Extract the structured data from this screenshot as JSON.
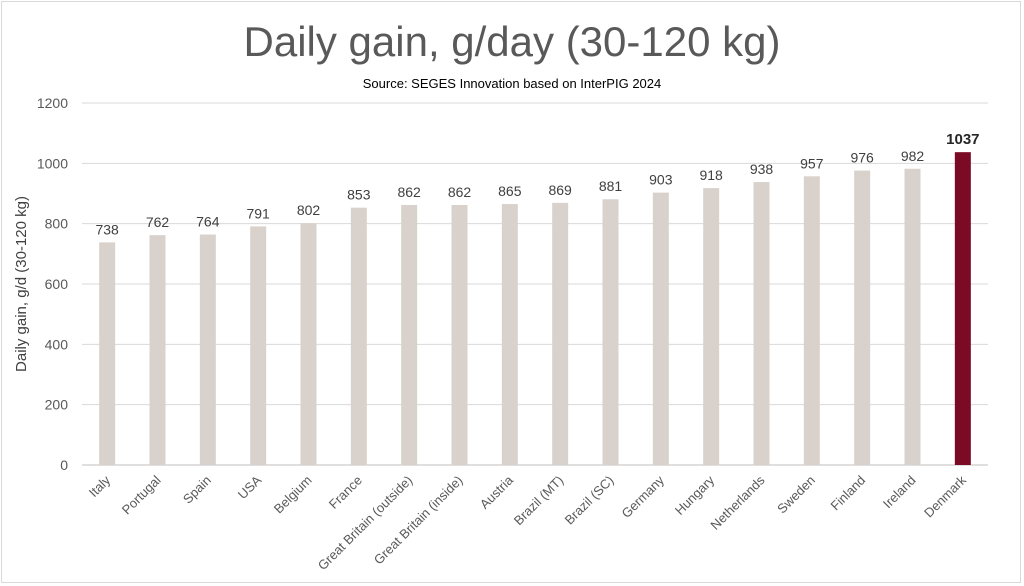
{
  "chart_data": {
    "type": "bar",
    "title": "Daily gain, g/day (30-120 kg)",
    "subtitle": "Source: SEGES Innovation based on InterPIG 2024",
    "xlabel": "",
    "ylabel": "Daily gain, g/d (30-120 kg)",
    "ylim": [
      0,
      1200
    ],
    "yticks": [
      0,
      200,
      400,
      600,
      800,
      1000,
      1200
    ],
    "grid": true,
    "categories": [
      "Italy",
      "Portugal",
      "Spain",
      "USA",
      "Belgium",
      "France",
      "Great Britain (outside)",
      "Great Britain (inside)",
      "Austria",
      "Brazil (MT)",
      "Brazil (SC)",
      "Germany",
      "Hungary",
      "Netherlands",
      "Sweden",
      "Finland",
      "Ireland",
      "Denmark"
    ],
    "values": [
      738,
      762,
      764,
      791,
      802,
      853,
      862,
      862,
      865,
      869,
      881,
      903,
      918,
      938,
      957,
      976,
      982,
      1037
    ],
    "highlight": "Denmark",
    "colors": {
      "bar": "#d9d2cc",
      "highlight": "#7b0a24",
      "grid": "#d9d9d9",
      "axis": "#bfbfbf"
    }
  }
}
